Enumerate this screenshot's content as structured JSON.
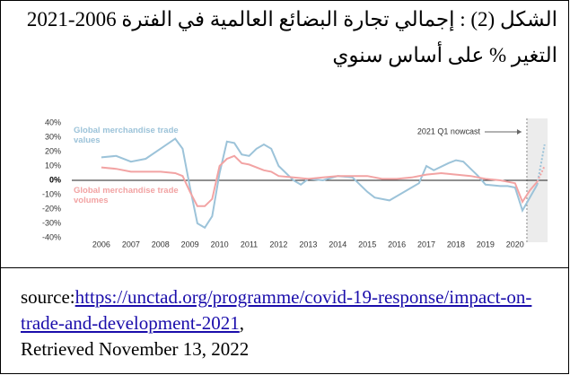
{
  "caption": {
    "line1": "الشكل (2) : إجمالي تجارة البضائع العالمية في الفترة 2006-2021",
    "line2": "التغير % على أساس سنوي"
  },
  "chart_data": {
    "type": "line",
    "annotation": "2021 Q1 nowcast",
    "shaded_region": [
      2020.4,
      2021.1
    ],
    "xlim": [
      2005,
      2021.1
    ],
    "ylim": [
      -40,
      40
    ],
    "xticks": [
      2006,
      2007,
      2008,
      2009,
      2010,
      2011,
      2012,
      2013,
      2014,
      2015,
      2016,
      2017,
      2018,
      2019,
      2020
    ],
    "yticks": [
      {
        "value": 40,
        "label": "40%"
      },
      {
        "value": 30,
        "label": "30%"
      },
      {
        "value": 20,
        "label": "20%"
      },
      {
        "value": 10,
        "label": "10%"
      },
      {
        "value": 0,
        "label": "0%"
      },
      {
        "value": -10,
        "label": "-10%"
      },
      {
        "value": -20,
        "label": "-20%"
      },
      {
        "value": -30,
        "label": "-30%"
      },
      {
        "value": -40,
        "label": "-40%"
      }
    ],
    "nowcast_x": 2021,
    "series": [
      {
        "name": "Global merchandise trade values",
        "color": "#9cc3d9",
        "x": [
          2006,
          2006.5,
          2007,
          2007.5,
          2008,
          2008.5,
          2008.75,
          2009,
          2009.25,
          2009.5,
          2009.75,
          2010,
          2010.25,
          2010.5,
          2010.75,
          2011,
          2011.25,
          2011.5,
          2011.75,
          2012,
          2012.5,
          2012.75,
          2013,
          2013.5,
          2014,
          2014.5,
          2015,
          2015.25,
          2015.75,
          2016,
          2016.5,
          2016.75,
          2017,
          2017.25,
          2017.75,
          2018,
          2018.25,
          2018.5,
          2018.75,
          2019,
          2019.5,
          2019.75,
          2020,
          2020.25,
          2020.5,
          2020.75
        ],
        "values": [
          16,
          17,
          13,
          15,
          22,
          29,
          22,
          -5,
          -30,
          -33,
          -25,
          5,
          27,
          26,
          18,
          17,
          22,
          25,
          22,
          10,
          0,
          -3,
          1,
          0,
          3,
          2,
          -8,
          -12,
          -14,
          -11,
          -5,
          -2,
          10,
          7,
          12,
          14,
          13,
          8,
          3,
          -3,
          -4,
          -4,
          -5,
          -21,
          -12,
          -3
        ],
        "nowcast": 25
      },
      {
        "name": "Global merchandise trade volumes",
        "color": "#f2a3a3",
        "x": [
          2006,
          2006.5,
          2007,
          2007.5,
          2008,
          2008.5,
          2008.75,
          2009,
          2009.25,
          2009.5,
          2009.75,
          2010,
          2010.25,
          2010.5,
          2010.75,
          2011,
          2011.5,
          2011.75,
          2012,
          2012.5,
          2013,
          2013.5,
          2014,
          2014.5,
          2015,
          2015.5,
          2016,
          2016.5,
          2017,
          2017.5,
          2018,
          2018.5,
          2019,
          2019.5,
          2020,
          2020.25,
          2020.5,
          2020.75
        ],
        "values": [
          9,
          8,
          6,
          6,
          6,
          5,
          3,
          -8,
          -18,
          -18,
          -13,
          10,
          15,
          17,
          12,
          11,
          7,
          6,
          3,
          2,
          1,
          2,
          3,
          3,
          3,
          1,
          1,
          2,
          4,
          5,
          4,
          3,
          1,
          0,
          -2,
          -15,
          -7,
          -1
        ],
        "nowcast": 10
      }
    ]
  },
  "source": {
    "prefix": "source:",
    "link": "https://unctad.org/programme/covid-19-response/impact-on-trade-and-development-2021",
    "suffix": ",",
    "retrieved": "Retrieved November 13, 2022"
  }
}
